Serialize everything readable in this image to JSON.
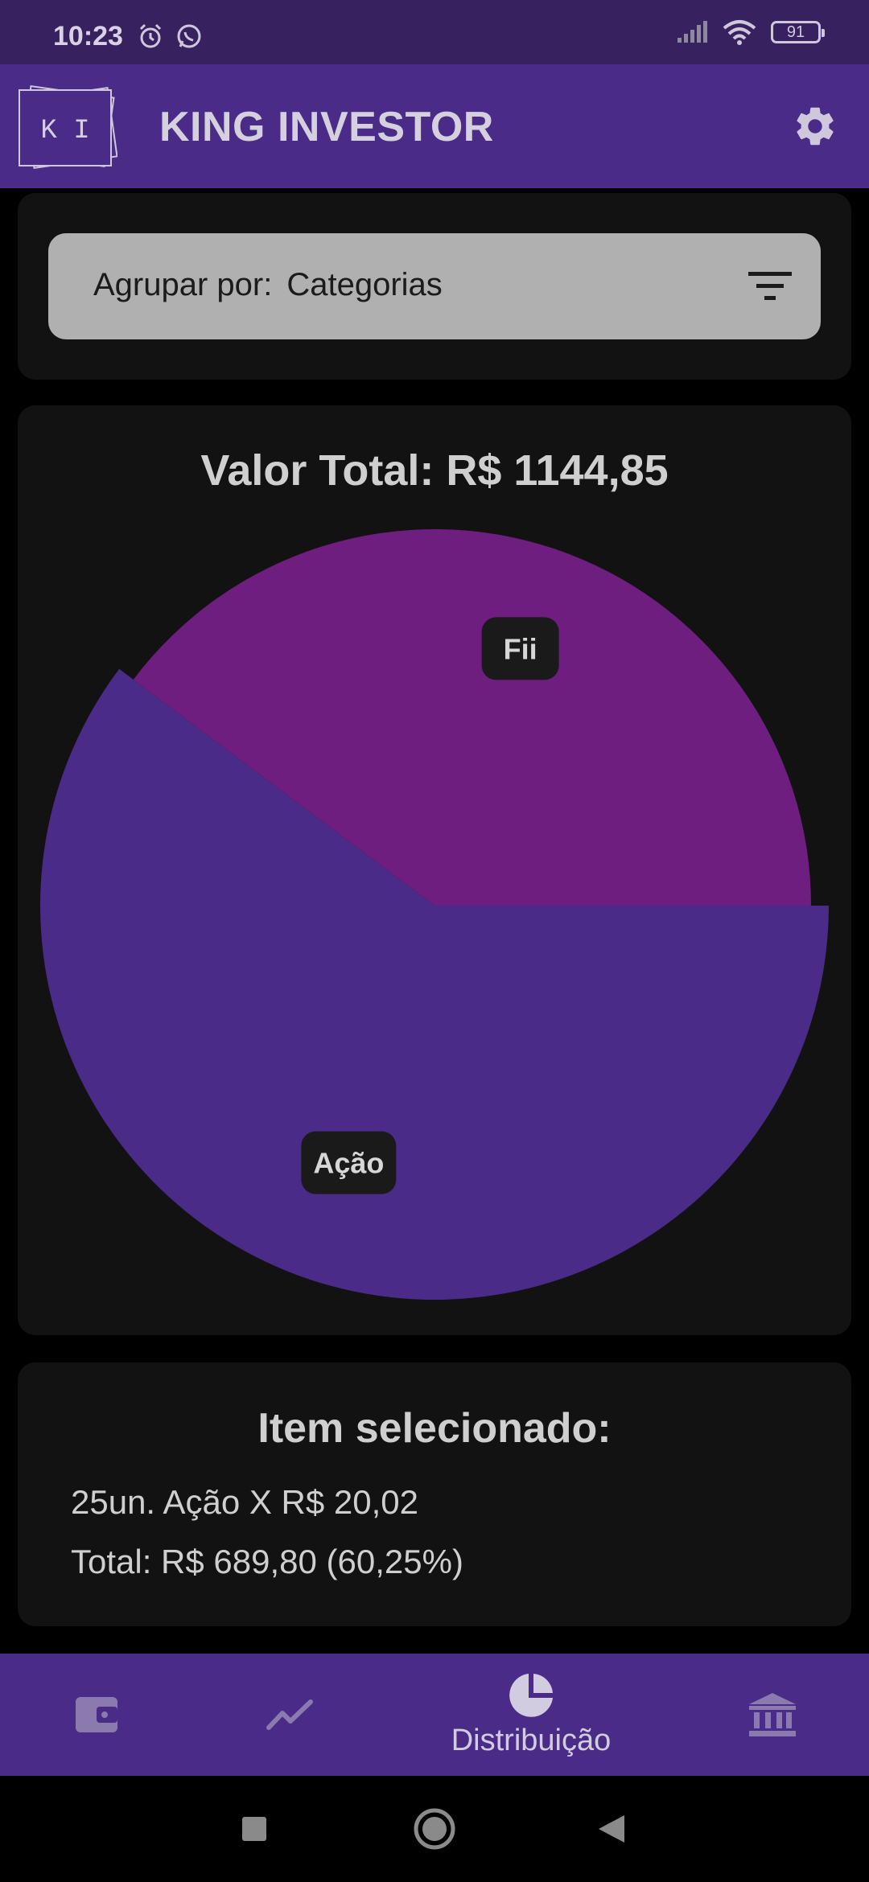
{
  "status_bar": {
    "time": "10:23",
    "battery": "91",
    "icons": [
      "alarm-icon",
      "whatsapp-icon",
      "signal-icon",
      "wifi-icon",
      "battery-icon"
    ]
  },
  "app_bar": {
    "logo_text": "K I",
    "title": "KING INVESTOR",
    "settings_icon": "gear-icon"
  },
  "filter": {
    "label": "Agrupar por:",
    "value": "Categorias",
    "icon": "filter-icon"
  },
  "chart": {
    "title": "Valor Total: R$ 1144,85"
  },
  "chart_data": {
    "type": "pie",
    "categories": [
      "Ação",
      "Fii"
    ],
    "values": [
      60.25,
      39.75
    ],
    "colors": [
      "#4a2b87",
      "#6e1e7e"
    ],
    "selected": "Ação"
  },
  "selected_item": {
    "title": "Item selecionado:",
    "line1": "25un. Ação X R$ 20,02",
    "line2": "Total: R$ 689,80 (60,25%)"
  },
  "bottom_nav": {
    "items": [
      {
        "icon": "wallet-icon",
        "label": ""
      },
      {
        "icon": "trending-icon",
        "label": ""
      },
      {
        "icon": "pie-chart-icon",
        "label": "Distribuição"
      },
      {
        "icon": "bank-icon",
        "label": ""
      }
    ],
    "active_index": 2
  },
  "colors": {
    "status_bar": "#37215f",
    "app_bar": "#4a2b87",
    "card": "#121212",
    "filter_bar": "#b0b0b0"
  }
}
